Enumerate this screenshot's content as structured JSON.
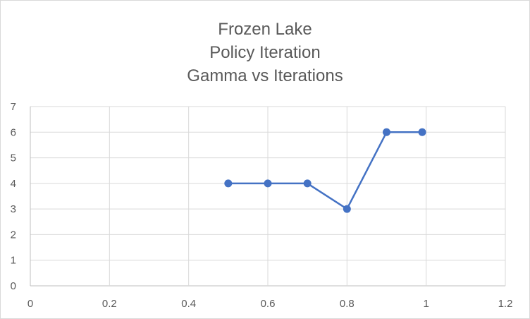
{
  "chart_data": {
    "type": "scatter",
    "title_lines": [
      "Frozen Lake",
      "Policy Iteration",
      "Gamma vs Iterations"
    ],
    "xlabel": "",
    "ylabel": "",
    "xlim": [
      0,
      1.2
    ],
    "ylim": [
      0,
      7
    ],
    "x_ticks": [
      "0",
      "0.2",
      "0.4",
      "0.6",
      "0.8",
      "1",
      "1.2"
    ],
    "y_ticks": [
      "0",
      "1",
      "2",
      "3",
      "4",
      "5",
      "6",
      "7"
    ],
    "grid": true,
    "legend": "none",
    "series": [
      {
        "x": [
          0.5,
          0.6,
          0.7,
          0.8,
          0.9,
          0.99
        ],
        "y": [
          4,
          4,
          4,
          3,
          6,
          6
        ],
        "color": "#4472c4",
        "markers": true,
        "line": true
      }
    ]
  }
}
